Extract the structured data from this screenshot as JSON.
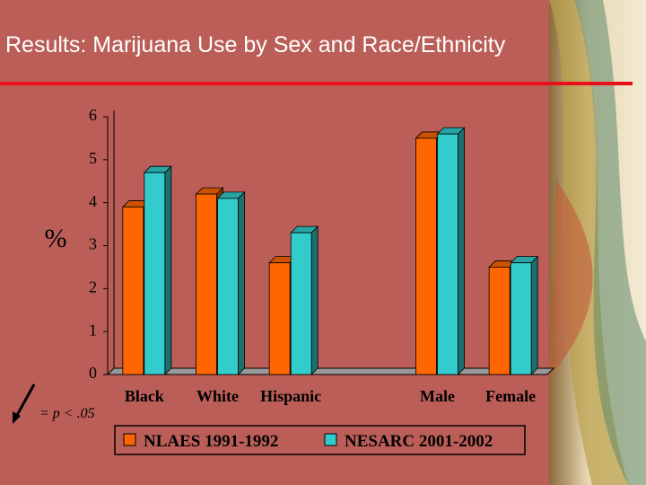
{
  "chart_data": {
    "type": "bar",
    "title": "Results:  Marijuana Use by Sex and Race/Ethnicity",
    "y_label": "%",
    "annotation": "= p < .05",
    "categories": [
      "Black",
      "White",
      "Hispanic",
      null,
      "Male",
      "Female"
    ],
    "series": [
      {
        "name": "NLAES 1991-1992",
        "color": "#ff6600",
        "values": [
          3.9,
          4.2,
          2.6,
          null,
          5.5,
          2.5
        ]
      },
      {
        "name": "NESARC 2001-2002",
        "color": "#33cccc",
        "values": [
          4.7,
          4.1,
          3.3,
          null,
          5.6,
          2.6
        ]
      }
    ],
    "ylim": [
      0,
      6
    ],
    "yticks": [
      0,
      1,
      2,
      3,
      4,
      5,
      6
    ],
    "grid": false,
    "legend": "bottom"
  }
}
